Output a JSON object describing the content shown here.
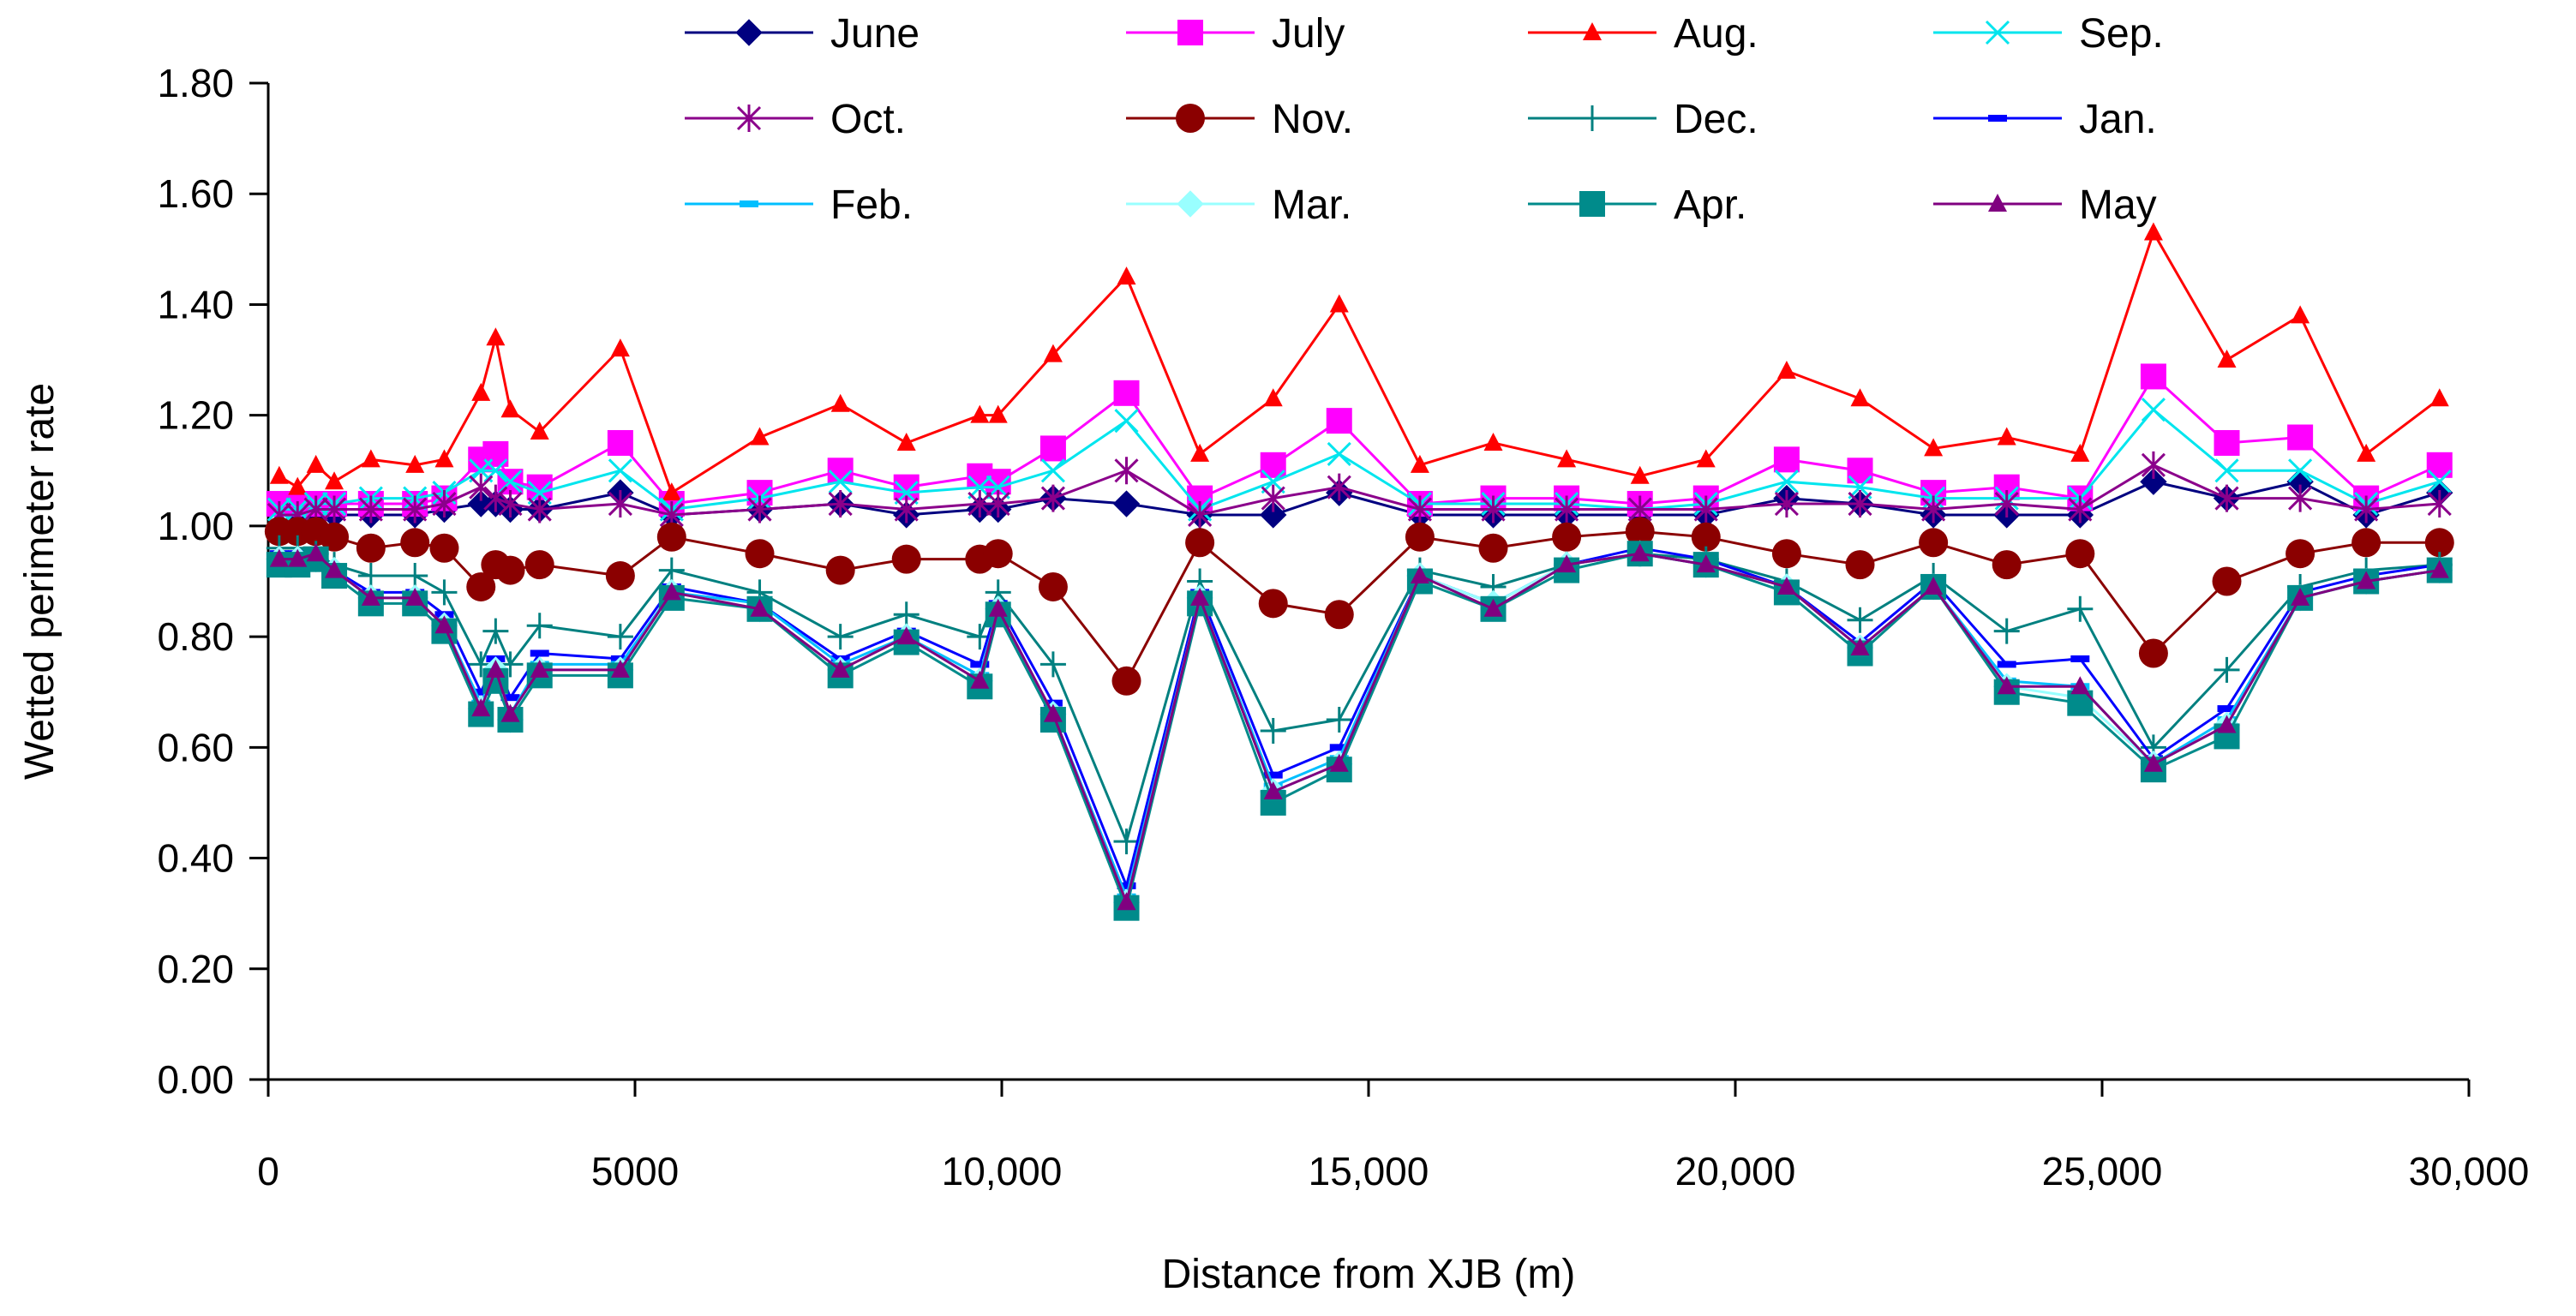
{
  "chart_data": {
    "type": "line",
    "title": "",
    "xlabel": "Distance from XJB (m)",
    "ylabel": "Wetted perimeter rate",
    "xlim": [
      0,
      30000
    ],
    "ylim": [
      0,
      1.8
    ],
    "xticks": [
      0,
      5000,
      10000,
      15000,
      20000,
      25000,
      30000
    ],
    "xtick_labels": [
      "0",
      "5000",
      "10,000",
      "15,000",
      "20,000",
      "25,000",
      "30,000"
    ],
    "yticks": [
      0,
      0.2,
      0.4,
      0.6,
      0.8,
      1.0,
      1.2,
      1.4,
      1.6,
      1.8
    ],
    "ytick_labels": [
      "0.00",
      "0.20",
      "0.40",
      "0.60",
      "0.80",
      "1.00",
      "1.20",
      "1.40",
      "1.60",
      "1.80"
    ],
    "grid": false,
    "legend": "top",
    "x": [
      150,
      400,
      650,
      900,
      1400,
      2000,
      2400,
      2900,
      3100,
      3300,
      3700,
      4800,
      5500,
      6700,
      7800,
      8700,
      9700,
      9950,
      10700,
      11700,
      12700,
      13700,
      14600,
      15700,
      16700,
      17700,
      18700,
      19600,
      20700,
      21700,
      22700,
      23700,
      24700,
      25700,
      26700,
      27700,
      28600,
      29600
    ],
    "series": [
      {
        "name": "June",
        "color": "#000080",
        "marker": "diamond",
        "values": [
          1.0,
          1.01,
          1.02,
          1.02,
          1.02,
          1.02,
          1.03,
          1.04,
          1.04,
          1.03,
          1.03,
          1.06,
          1.02,
          1.03,
          1.04,
          1.02,
          1.03,
          1.03,
          1.05,
          1.04,
          1.02,
          1.02,
          1.06,
          1.02,
          1.02,
          1.02,
          1.02,
          1.02,
          1.05,
          1.04,
          1.02,
          1.02,
          1.02,
          1.08,
          1.05,
          1.08,
          1.02,
          1.06
        ]
      },
      {
        "name": "July",
        "color": "#ff00ff",
        "marker": "square",
        "values": [
          1.04,
          1.04,
          1.04,
          1.04,
          1.04,
          1.04,
          1.05,
          1.12,
          1.13,
          1.08,
          1.07,
          1.15,
          1.04,
          1.06,
          1.1,
          1.07,
          1.09,
          1.08,
          1.14,
          1.24,
          1.05,
          1.11,
          1.19,
          1.04,
          1.05,
          1.05,
          1.04,
          1.05,
          1.12,
          1.1,
          1.06,
          1.07,
          1.05,
          1.27,
          1.15,
          1.16,
          1.05,
          1.11
        ]
      },
      {
        "name": "Aug.",
        "color": "#ff0000",
        "marker": "triangle",
        "values": [
          1.09,
          1.07,
          1.11,
          1.08,
          1.12,
          1.11,
          1.12,
          1.24,
          1.34,
          1.21,
          1.17,
          1.32,
          1.06,
          1.16,
          1.22,
          1.15,
          1.2,
          1.2,
          1.31,
          1.45,
          1.13,
          1.23,
          1.4,
          1.11,
          1.15,
          1.12,
          1.09,
          1.12,
          1.28,
          1.23,
          1.14,
          1.16,
          1.13,
          1.53,
          1.3,
          1.38,
          1.13,
          1.23
        ]
      },
      {
        "name": "Sep.",
        "color": "#00e5ee",
        "marker": "x",
        "values": [
          1.03,
          1.03,
          1.04,
          1.04,
          1.05,
          1.05,
          1.06,
          1.1,
          1.1,
          1.08,
          1.06,
          1.1,
          1.03,
          1.05,
          1.08,
          1.06,
          1.07,
          1.07,
          1.1,
          1.19,
          1.03,
          1.08,
          1.13,
          1.04,
          1.04,
          1.04,
          1.03,
          1.04,
          1.08,
          1.07,
          1.05,
          1.05,
          1.05,
          1.21,
          1.1,
          1.1,
          1.04,
          1.08
        ]
      },
      {
        "name": "Oct.",
        "color": "#8b008b",
        "marker": "asterisk",
        "values": [
          1.02,
          1.02,
          1.03,
          1.03,
          1.03,
          1.03,
          1.04,
          1.07,
          1.05,
          1.04,
          1.03,
          1.04,
          1.02,
          1.03,
          1.04,
          1.03,
          1.04,
          1.04,
          1.05,
          1.1,
          1.02,
          1.05,
          1.07,
          1.03,
          1.03,
          1.03,
          1.03,
          1.03,
          1.04,
          1.04,
          1.03,
          1.04,
          1.03,
          1.11,
          1.05,
          1.05,
          1.03,
          1.04
        ]
      },
      {
        "name": "Nov.",
        "color": "#8b0000",
        "marker": "circle",
        "values": [
          0.99,
          0.99,
          0.99,
          0.98,
          0.96,
          0.97,
          0.96,
          0.89,
          0.93,
          0.92,
          0.93,
          0.91,
          0.98,
          0.95,
          0.92,
          0.94,
          0.94,
          0.95,
          0.89,
          0.72,
          0.97,
          0.86,
          0.84,
          0.98,
          0.96,
          0.98,
          0.99,
          0.98,
          0.95,
          0.93,
          0.97,
          0.93,
          0.95,
          0.77,
          0.9,
          0.95,
          0.97,
          0.97
        ]
      },
      {
        "name": "Dec.",
        "color": "#008080",
        "marker": "plus",
        "values": [
          0.96,
          0.96,
          0.95,
          0.93,
          0.91,
          0.91,
          0.88,
          0.75,
          0.81,
          0.75,
          0.82,
          0.8,
          0.92,
          0.88,
          0.8,
          0.84,
          0.8,
          0.88,
          0.75,
          0.43,
          0.9,
          0.63,
          0.65,
          0.92,
          0.89,
          0.93,
          0.95,
          0.94,
          0.9,
          0.83,
          0.91,
          0.81,
          0.85,
          0.6,
          0.74,
          0.89,
          0.92,
          0.93
        ]
      },
      {
        "name": "Jan.",
        "color": "#0000ff",
        "marker": "dash",
        "values": [
          0.95,
          0.95,
          0.95,
          0.92,
          0.88,
          0.88,
          0.84,
          0.7,
          0.76,
          0.69,
          0.77,
          0.76,
          0.89,
          0.86,
          0.76,
          0.81,
          0.75,
          0.86,
          0.68,
          0.35,
          0.88,
          0.55,
          0.6,
          0.91,
          0.86,
          0.93,
          0.96,
          0.94,
          0.89,
          0.79,
          0.9,
          0.75,
          0.76,
          0.58,
          0.67,
          0.88,
          0.91,
          0.93
        ]
      },
      {
        "name": "Feb.",
        "color": "#00bfff",
        "marker": "dash",
        "values": [
          0.94,
          0.94,
          0.94,
          0.92,
          0.87,
          0.87,
          0.82,
          0.68,
          0.74,
          0.66,
          0.75,
          0.75,
          0.88,
          0.86,
          0.75,
          0.8,
          0.73,
          0.85,
          0.66,
          0.33,
          0.87,
          0.53,
          0.58,
          0.91,
          0.86,
          0.93,
          0.95,
          0.93,
          0.89,
          0.78,
          0.89,
          0.72,
          0.71,
          0.57,
          0.65,
          0.87,
          0.9,
          0.92
        ]
      },
      {
        "name": "Mar.",
        "color": "#99ffff",
        "marker": "diamond",
        "values": [
          0.94,
          0.94,
          0.94,
          0.92,
          0.87,
          0.87,
          0.82,
          0.67,
          0.74,
          0.65,
          0.74,
          0.74,
          0.88,
          0.85,
          0.74,
          0.8,
          0.72,
          0.85,
          0.66,
          0.32,
          0.87,
          0.52,
          0.57,
          0.91,
          0.86,
          0.93,
          0.95,
          0.93,
          0.89,
          0.78,
          0.89,
          0.71,
          0.69,
          0.57,
          0.64,
          0.87,
          0.9,
          0.92
        ]
      },
      {
        "name": "Apr.",
        "color": "#008b8b",
        "marker": "square",
        "values": [
          0.93,
          0.93,
          0.94,
          0.91,
          0.86,
          0.86,
          0.81,
          0.66,
          0.72,
          0.65,
          0.73,
          0.73,
          0.87,
          0.85,
          0.73,
          0.79,
          0.71,
          0.84,
          0.65,
          0.31,
          0.86,
          0.5,
          0.56,
          0.9,
          0.85,
          0.92,
          0.95,
          0.93,
          0.88,
          0.77,
          0.89,
          0.7,
          0.68,
          0.56,
          0.62,
          0.87,
          0.9,
          0.92
        ]
      },
      {
        "name": "May",
        "color": "#800080",
        "marker": "triangle",
        "values": [
          0.94,
          0.94,
          0.95,
          0.92,
          0.87,
          0.87,
          0.82,
          0.67,
          0.74,
          0.66,
          0.74,
          0.74,
          0.88,
          0.85,
          0.74,
          0.8,
          0.72,
          0.85,
          0.66,
          0.32,
          0.87,
          0.52,
          0.57,
          0.91,
          0.85,
          0.93,
          0.95,
          0.93,
          0.89,
          0.78,
          0.89,
          0.71,
          0.71,
          0.57,
          0.64,
          0.87,
          0.9,
          0.92
        ]
      }
    ]
  }
}
